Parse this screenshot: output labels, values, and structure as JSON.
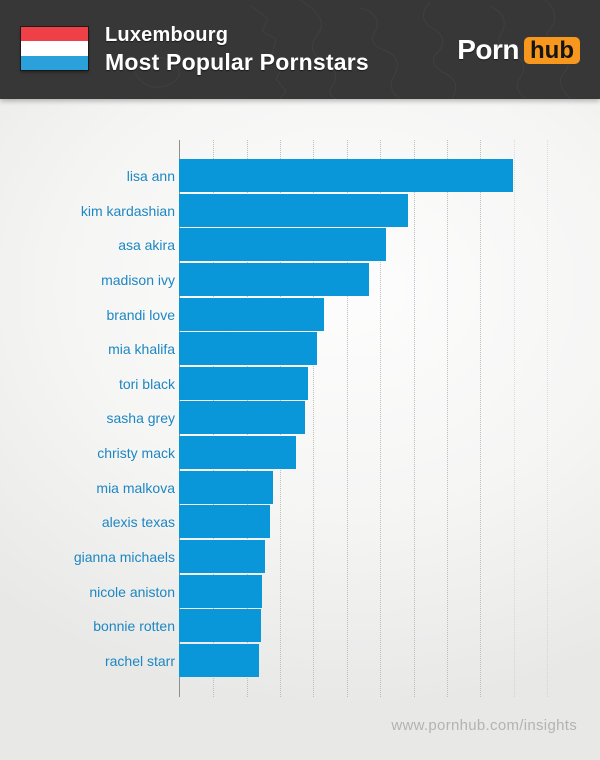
{
  "header": {
    "country": "Luxembourg",
    "title": "Most Popular Pornstars",
    "flag": {
      "name": "luxembourg-flag",
      "stripe_colors": [
        "#ee4046",
        "#ffffff",
        "#2ba1db"
      ]
    },
    "logo": {
      "part1": "Porn",
      "part2": "hub",
      "orange": "#f7971d"
    }
  },
  "chart_data": {
    "type": "bar",
    "orientation": "horizontal",
    "title": "Luxembourg — Most Popular Pornstars",
    "categories": [
      "lisa ann",
      "kim kardashian",
      "asa akira",
      "madison ivy",
      "brandi love",
      "mia khalifa",
      "tori black",
      "sasha grey",
      "christy mack",
      "mia malkova",
      "alexis texas",
      "gianna michaels",
      "nicole aniston",
      "bonnie rotten",
      "rachel starr"
    ],
    "values": [
      100,
      68.5,
      61.9,
      56.8,
      43.5,
      41.4,
      38.7,
      37.8,
      35.1,
      28.2,
      27.3,
      25.8,
      24.9,
      24.6,
      24.0
    ],
    "unit": "relative popularity (max = 100, no numeric axis labels shown)",
    "xlim": [
      0,
      110
    ],
    "grid": true,
    "gridline_step": 10,
    "gridline_count": 11,
    "bar_color": "#0a97d9",
    "label_color": "#1d87c2",
    "axis_color": "#8f8f8e",
    "gridline_color": "#bdbdbb",
    "legend": null,
    "xlabel": "",
    "ylabel": ""
  },
  "footer": {
    "url": "www.pornhub.com/insights"
  }
}
